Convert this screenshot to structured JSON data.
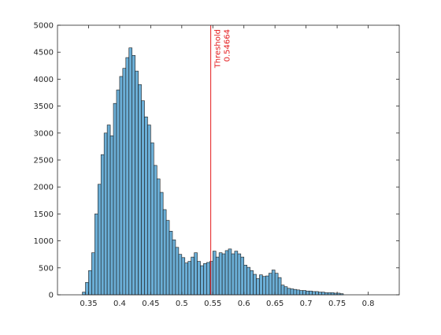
{
  "chart_data": {
    "type": "bar",
    "subtype": "histogram",
    "bin_width": 0.005,
    "first_bin_center": 0.3425,
    "xlim": [
      0.3,
      0.85
    ],
    "ylim": [
      0,
      5000
    ],
    "x_ticks": [
      0.35,
      0.4,
      0.45,
      0.5,
      0.55,
      0.6,
      0.65,
      0.7,
      0.75,
      0.8
    ],
    "x_tick_labels": [
      "0.35",
      "0.4",
      "0.45",
      "0.5",
      "0.55",
      "0.6",
      "0.65",
      "0.7",
      "0.75",
      "0.8"
    ],
    "y_ticks": [
      0,
      500,
      1000,
      1500,
      2000,
      2500,
      3000,
      3500,
      4000,
      4500,
      5000
    ],
    "y_tick_labels": [
      "0",
      "500",
      "1000",
      "1500",
      "2000",
      "2500",
      "3000",
      "3500",
      "4000",
      "4500",
      "5000"
    ],
    "values": [
      50,
      230,
      450,
      780,
      1500,
      2050,
      2600,
      3000,
      3150,
      2950,
      3550,
      3800,
      4050,
      4200,
      4400,
      4580,
      4440,
      4150,
      3900,
      3600,
      3300,
      3150,
      2820,
      2400,
      2150,
      1900,
      1580,
      1380,
      1180,
      1020,
      880,
      750,
      690,
      590,
      620,
      700,
      780,
      620,
      540,
      580,
      600,
      620,
      810,
      700,
      780,
      760,
      820,
      850,
      760,
      810,
      760,
      700,
      550,
      510,
      450,
      380,
      300,
      370,
      340,
      350,
      400,
      460,
      400,
      320,
      180,
      150,
      120,
      110,
      100,
      90,
      80,
      80,
      70,
      70,
      60,
      60,
      50,
      50,
      40,
      40,
      40,
      30,
      30,
      20
    ],
    "grid": false,
    "bar_color": "#6baed6",
    "edge_color": "#1a1a1a",
    "threshold": {
      "value": 0.54664,
      "label": "Threshold",
      "value_label": "0.54664",
      "color": "#e41a1c"
    }
  }
}
